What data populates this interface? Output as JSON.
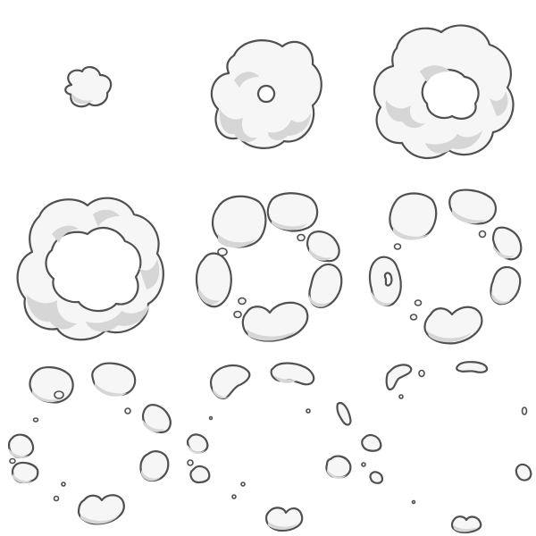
{
  "sprite_sheet": {
    "frames": [
      {
        "index": 1,
        "stage": "small-puff"
      },
      {
        "index": 2,
        "stage": "expanding-ring"
      },
      {
        "index": 3,
        "stage": "full-ring"
      },
      {
        "index": 4,
        "stage": "wide-ring"
      },
      {
        "index": 5,
        "stage": "breaking-apart"
      },
      {
        "index": 6,
        "stage": "scattering"
      },
      {
        "index": 7,
        "stage": "dispersing"
      },
      {
        "index": 8,
        "stage": "fading"
      },
      {
        "index": 9,
        "stage": "almost-gone"
      }
    ],
    "colors": {
      "fill": "#f6f6f6",
      "shade": "#d6d6d6",
      "outline": "#505050",
      "background": "#ffffff"
    }
  }
}
